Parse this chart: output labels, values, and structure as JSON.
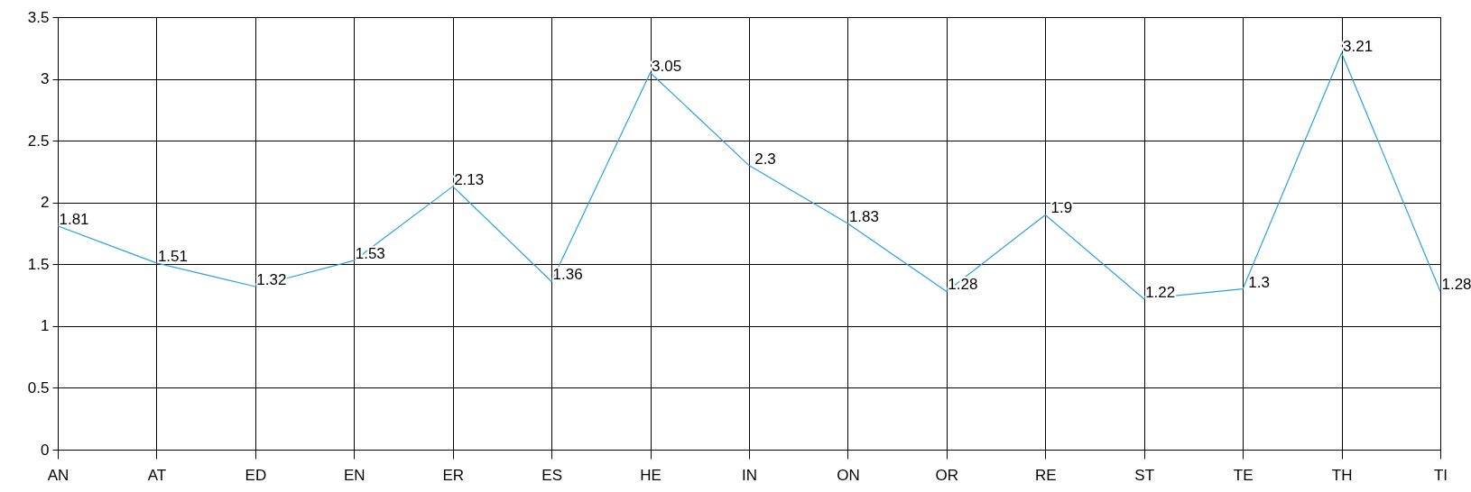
{
  "chart_data": {
    "type": "line",
    "categories": [
      "AN",
      "AT",
      "ED",
      "EN",
      "ER",
      "ES",
      "HE",
      "IN",
      "ON",
      "OR",
      "RE",
      "ST",
      "TE",
      "TH",
      "TI"
    ],
    "values": [
      1.81,
      1.51,
      1.32,
      1.53,
      2.13,
      1.36,
      3.05,
      2.3,
      1.83,
      1.28,
      1.9,
      1.22,
      1.3,
      3.21,
      1.28
    ],
    "color": "#2aa0e8",
    "ylim": [
      0,
      3.5
    ],
    "yticks": [
      0,
      0.5,
      1,
      1.5,
      2,
      2.5,
      3,
      3.5
    ],
    "grid": true,
    "data_labels": true
  }
}
